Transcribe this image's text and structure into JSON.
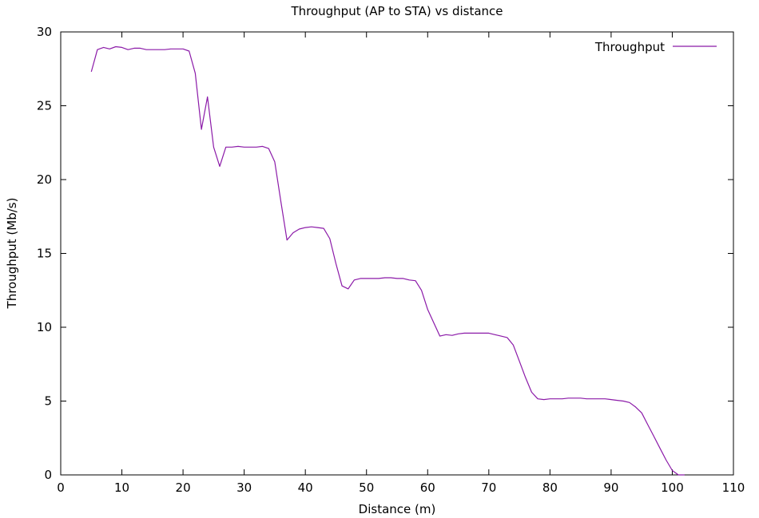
{
  "chart_data": {
    "type": "line",
    "title": "Throughput (AP to STA) vs distance",
    "xlabel": "Distance (m)",
    "ylabel": "Throughput (Mb/s)",
    "xlim": [
      0,
      110
    ],
    "ylim": [
      0,
      30
    ],
    "xticks": [
      "0",
      "10",
      "20",
      "30",
      "40",
      "50",
      "60",
      "70",
      "80",
      "90",
      "100",
      "110"
    ],
    "yticks": [
      "0",
      "5",
      "10",
      "15",
      "20",
      "25",
      "30"
    ],
    "grid": false,
    "legend_position": "top-right",
    "series": [
      {
        "name": "Throughput",
        "color": "#8b1aa8",
        "x": [
          5,
          6,
          7,
          8,
          9,
          10,
          11,
          12,
          13,
          14,
          15,
          16,
          17,
          18,
          19,
          20,
          21,
          22,
          23,
          24,
          25,
          26,
          27,
          28,
          29,
          30,
          31,
          32,
          33,
          34,
          35,
          36,
          37,
          38,
          39,
          40,
          41,
          42,
          43,
          44,
          45,
          46,
          47,
          48,
          49,
          50,
          51,
          52,
          53,
          54,
          55,
          56,
          57,
          58,
          59,
          60,
          61,
          62,
          63,
          64,
          65,
          66,
          67,
          68,
          69,
          70,
          71,
          72,
          73,
          74,
          75,
          76,
          77,
          78,
          79,
          80,
          81,
          82,
          83,
          84,
          85,
          86,
          87,
          88,
          89,
          90,
          91,
          92,
          93,
          94,
          95,
          96,
          97,
          98,
          99,
          100,
          101,
          102
        ],
        "y": [
          27.3,
          28.8,
          28.95,
          28.85,
          29.0,
          28.95,
          28.8,
          28.9,
          28.9,
          28.8,
          28.8,
          28.8,
          28.8,
          28.85,
          28.85,
          28.85,
          28.7,
          27.2,
          23.4,
          25.6,
          22.2,
          20.9,
          22.2,
          22.2,
          22.25,
          22.2,
          22.2,
          22.2,
          22.25,
          22.1,
          21.2,
          18.5,
          15.9,
          16.4,
          16.65,
          16.75,
          16.8,
          16.75,
          16.7,
          16.0,
          14.3,
          12.8,
          12.6,
          13.2,
          13.3,
          13.3,
          13.3,
          13.3,
          13.35,
          13.35,
          13.3,
          13.3,
          13.2,
          13.15,
          12.5,
          11.2,
          10.3,
          9.4,
          9.5,
          9.45,
          9.55,
          9.6,
          9.6,
          9.6,
          9.6,
          9.6,
          9.5,
          9.4,
          9.3,
          8.8,
          7.7,
          6.6,
          5.6,
          5.15,
          5.1,
          5.15,
          5.15,
          5.15,
          5.2,
          5.2,
          5.2,
          5.15,
          5.15,
          5.15,
          5.15,
          5.1,
          5.05,
          5.0,
          4.9,
          4.6,
          4.2,
          3.4,
          2.6,
          1.8,
          1.0,
          0.3,
          0.0,
          0.0
        ]
      }
    ]
  }
}
